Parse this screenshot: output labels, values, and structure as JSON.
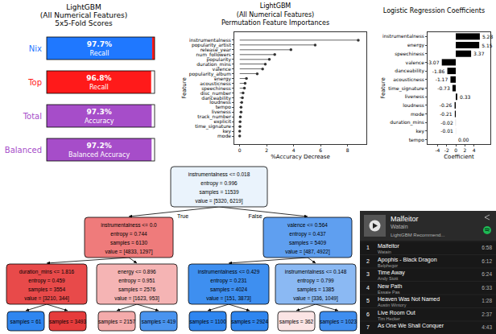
{
  "scores": {
    "title": [
      "LightGBM",
      "(All Numerical Features)",
      "5x5-Fold Scores"
    ],
    "cards": [
      {
        "label": "Nix",
        "value": 97.7,
        "value_label": "97.7%",
        "metric": "Recall",
        "label_color": "#1f78ff",
        "color": "#1f78ff",
        "rest_color": "#ff1a1a"
      },
      {
        "label": "Top",
        "value": 96.8,
        "value_label": "96.8%",
        "metric": "Recall",
        "label_color": "#ff1a1a",
        "color": "#ff1a1a",
        "rest_color": "#ffffff"
      },
      {
        "label": "Total",
        "value": 97.3,
        "value_label": "97.3%",
        "metric": "Accuracy",
        "label_color": "#a64dc9",
        "color": "#a64dc9",
        "rest_color": "#ffffff"
      },
      {
        "label": "Balanced",
        "value": 97.2,
        "value_label": "97.2%",
        "metric": "Balanced Accuracy",
        "label_color": "#a64dc9",
        "color": "#a64dc9",
        "rest_color": "#ffffff"
      }
    ]
  },
  "chart_data": [
    {
      "type": "lollipop",
      "title": [
        "LightGBM",
        "(All Numerical Features)",
        "Permutation Feature Importances"
      ],
      "xlabel": "%Accuracy Decrease",
      "ylabel": "Feature",
      "orientation": "horizontal",
      "categories": [
        "instrumentalness",
        "popularity_artist",
        "release_year",
        "num_followers",
        "popularity",
        "duration_mins",
        "valence",
        "popularity_album",
        "energy",
        "acousticness",
        "speechiness",
        "disc_number",
        "danceability",
        "loudness",
        "tempo",
        "liveness",
        "track_number",
        "explicit",
        "time_signature",
        "key",
        "mode"
      ],
      "values": [
        8.8,
        5.6,
        3.8,
        2.6,
        2.2,
        1.9,
        1.7,
        1.3,
        0.5,
        0.4,
        0.35,
        0.25,
        0.2,
        0.15,
        0.1,
        0.1,
        0.05,
        0.03,
        0.02,
        0.0,
        0.0
      ],
      "color": "#333333",
      "marker": "circle",
      "xlim": [
        -0.4,
        9.4
      ],
      "xticks": [
        0,
        2,
        4,
        6,
        8
      ],
      "grid": false
    },
    {
      "type": "bar",
      "title": "Logistic Regression Coefficients",
      "xlabel": "Coefficient",
      "ylabel": "Feature",
      "orientation": "horizontal",
      "categories": [
        "instrumentalness",
        "energy",
        "speechiness",
        "valence",
        "danceability",
        "acousticness",
        "time_signature",
        "liveness",
        "loudness",
        "mode",
        "duration_mins",
        "key",
        "tempo"
      ],
      "values": [
        5.28,
        5.15,
        3.37,
        -3.07,
        -1.86,
        -1.17,
        -0.73,
        0.33,
        -0.26,
        -0.21,
        -0.02,
        -0.01,
        0.0
      ],
      "value_labels": [
        "5.28",
        "5.15",
        "3.37",
        "-3.07",
        "-1.86",
        "-1.17",
        "-0.73",
        "0.33",
        "-0.26",
        "-0.21",
        "-0.02",
        "-0.01",
        "0.00"
      ],
      "data_labels": true,
      "color": "#000000",
      "xlim": [
        -6.2,
        7.6
      ],
      "xticks": [
        -4,
        -2,
        0,
        2,
        4
      ],
      "grid": false
    }
  ],
  "tree": {
    "nodes": [
      {
        "lines": [
          "instrumentalness <= 0.018",
          "entropy = 0.996",
          "samples = 11539",
          "value = [5320, 6219]"
        ],
        "color": "#eaf3fc"
      },
      {
        "lines": [
          "instrumentalness <= 0.0",
          "entropy = 0.744",
          "samples = 6130",
          "value = [4833, 1297]"
        ],
        "color": "#ef7b7b"
      },
      {
        "lines": [
          "valence <= 0.564",
          "entropy = 0.437",
          "samples = 5409",
          "value = [487, 4922]"
        ],
        "color": "#5f9ff0"
      },
      {
        "lines": [
          "duration_mins <= 1.816",
          "entropy = 0.459",
          "samples = 3554",
          "value = [3210, 344]"
        ],
        "color": "#e84a4a"
      },
      {
        "lines": [
          "energy <= 0.896",
          "entropy = 0.951",
          "samples = 2576",
          "value = [1623, 953]"
        ],
        "color": "#f5b4b4"
      },
      {
        "lines": [
          "instrumentalness <= 0.429",
          "entropy = 0.231",
          "samples = 4024",
          "value = [151, 3873]"
        ],
        "color": "#3e8ff0"
      },
      {
        "lines": [
          "instrumentalness <= 0.148",
          "entropy = 0.799",
          "samples = 1385",
          "value = [336, 1049]"
        ],
        "color": "#8bb9f3"
      },
      {
        "lines": [
          "samples = 61"
        ],
        "color": "#2f86f0"
      },
      {
        "lines": [
          "samples = 3493"
        ],
        "color": "#e53c3c"
      },
      {
        "lines": [
          "samples = 2157"
        ],
        "color": "#f4abab"
      },
      {
        "lines": [
          "samples = 419"
        ],
        "color": "#4a94ef"
      },
      {
        "lines": [
          "samples = 1100"
        ],
        "color": "#2f86f0"
      },
      {
        "lines": [
          "samples = 2924"
        ],
        "color": "#2f86f0"
      },
      {
        "lines": [
          "samples = 362"
        ],
        "color": "#fbe4e4"
      },
      {
        "lines": [
          "samples = 1023"
        ],
        "color": "#3f8ef0"
      }
    ],
    "edges": [
      {
        "from": 0,
        "to": 1,
        "label": "True"
      },
      {
        "from": 0,
        "to": 2,
        "label": "False"
      },
      {
        "from": 1,
        "to": 3
      },
      {
        "from": 1,
        "to": 4
      },
      {
        "from": 2,
        "to": 5
      },
      {
        "from": 2,
        "to": 6
      },
      {
        "from": 3,
        "to": 7
      },
      {
        "from": 3,
        "to": 8
      },
      {
        "from": 4,
        "to": 9
      },
      {
        "from": 4,
        "to": 10
      },
      {
        "from": 5,
        "to": 11
      },
      {
        "from": 5,
        "to": 12
      },
      {
        "from": 6,
        "to": 13
      },
      {
        "from": 6,
        "to": 14
      }
    ]
  },
  "playlist": {
    "title": "Malfeitor",
    "artist": "Watain",
    "subtitle": "LightGBM Recommend...",
    "tracks": [
      {
        "number": 1,
        "title": "Malfeitor",
        "artist": "Watain",
        "duration": "6:58"
      },
      {
        "number": 2,
        "title": "Apophis - Black Dragon",
        "artist": "Belphegor",
        "duration": "6:12"
      },
      {
        "number": 3,
        "title": "Time Away",
        "artist": "Andy Stott",
        "duration": "6:24"
      },
      {
        "number": 4,
        "title": "New Path",
        "artist": "Essaie Pas",
        "duration": "6:33"
      },
      {
        "number": 5,
        "title": "Heaven Was Not Named",
        "artist": "Austin Wintory",
        "duration": "1:28"
      },
      {
        "number": 6,
        "title": "Live Room Out",
        "artist": "Tim Hecker",
        "duration": "2:37"
      },
      {
        "number": 7,
        "title": "As One We Shall Conquer",
        "duration": "4:43"
      }
    ]
  }
}
